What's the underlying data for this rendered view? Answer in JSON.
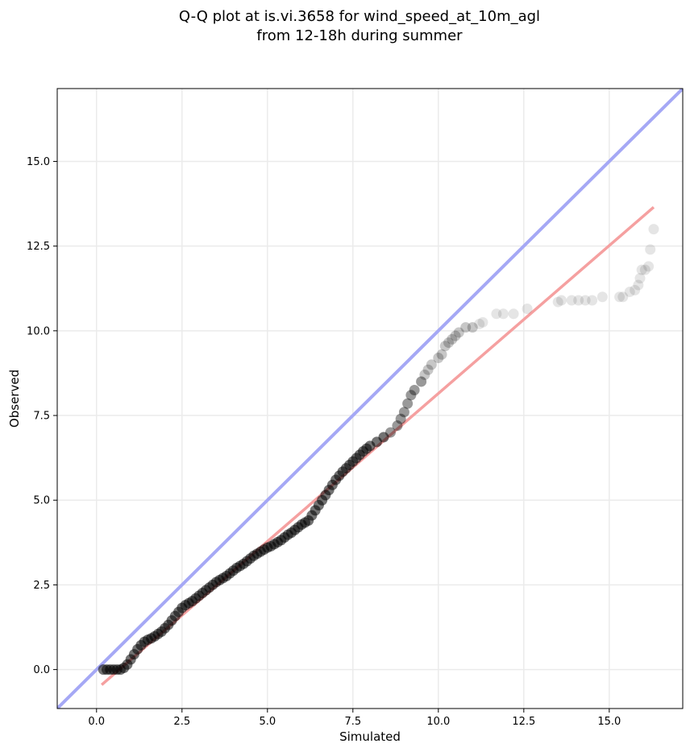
{
  "chart_data": {
    "type": "scatter",
    "title": [
      "Q-Q plot at is.vi.3658 for wind_speed_at_10m_agl",
      "from 12-18h during summer"
    ],
    "xlabel": "Simulated",
    "ylabel": "Observed",
    "xlim": [
      -1.15,
      17.15
    ],
    "ylim": [
      -1.15,
      17.15
    ],
    "xticks": [
      0.0,
      2.5,
      5.0,
      7.5,
      10.0,
      12.5,
      15.0
    ],
    "xtick_labels": [
      "0.0",
      "2.5",
      "5.0",
      "7.5",
      "10.0",
      "12.5",
      "15.0"
    ],
    "yticks": [
      0.0,
      2.5,
      5.0,
      7.5,
      10.0,
      12.5,
      15.0
    ],
    "ytick_labels": [
      "0.0",
      "2.5",
      "5.0",
      "7.5",
      "10.0",
      "12.5",
      "15.0"
    ],
    "grid": true,
    "reference_line": {
      "from": [
        -1.15,
        -1.15
      ],
      "to": [
        17.15,
        17.15
      ],
      "color": "#a5a8f5"
    },
    "fit_line": {
      "from": [
        0.15,
        -0.45
      ],
      "to": [
        16.3,
        13.65
      ],
      "color": "#f5a0a0"
    },
    "point_color": "#000000",
    "points": [
      [
        0.2,
        0.0
      ],
      [
        0.3,
        0.0
      ],
      [
        0.4,
        0.0
      ],
      [
        0.5,
        0.0
      ],
      [
        0.6,
        0.0
      ],
      [
        0.7,
        0.0
      ],
      [
        0.8,
        0.05
      ],
      [
        0.9,
        0.15
      ],
      [
        1.0,
        0.3
      ],
      [
        1.1,
        0.45
      ],
      [
        1.2,
        0.6
      ],
      [
        1.3,
        0.72
      ],
      [
        1.4,
        0.82
      ],
      [
        1.5,
        0.88
      ],
      [
        1.6,
        0.92
      ],
      [
        1.7,
        0.98
      ],
      [
        1.8,
        1.05
      ],
      [
        1.9,
        1.12
      ],
      [
        2.0,
        1.22
      ],
      [
        2.1,
        1.32
      ],
      [
        2.2,
        1.45
      ],
      [
        2.3,
        1.58
      ],
      [
        2.4,
        1.7
      ],
      [
        2.5,
        1.82
      ],
      [
        2.6,
        1.9
      ],
      [
        2.7,
        1.96
      ],
      [
        2.8,
        2.02
      ],
      [
        2.9,
        2.1
      ],
      [
        3.0,
        2.18
      ],
      [
        3.1,
        2.26
      ],
      [
        3.2,
        2.34
      ],
      [
        3.3,
        2.42
      ],
      [
        3.4,
        2.5
      ],
      [
        3.5,
        2.58
      ],
      [
        3.6,
        2.64
      ],
      [
        3.7,
        2.7
      ],
      [
        3.8,
        2.76
      ],
      [
        3.9,
        2.84
      ],
      [
        4.0,
        2.92
      ],
      [
        4.1,
        3.0
      ],
      [
        4.2,
        3.06
      ],
      [
        4.3,
        3.12
      ],
      [
        4.4,
        3.2
      ],
      [
        4.5,
        3.28
      ],
      [
        4.6,
        3.36
      ],
      [
        4.7,
        3.42
      ],
      [
        4.8,
        3.48
      ],
      [
        4.9,
        3.54
      ],
      [
        5.0,
        3.6
      ],
      [
        5.1,
        3.64
      ],
      [
        5.2,
        3.7
      ],
      [
        5.3,
        3.76
      ],
      [
        5.4,
        3.82
      ],
      [
        5.5,
        3.9
      ],
      [
        5.6,
        3.98
      ],
      [
        5.7,
        4.04
      ],
      [
        5.8,
        4.12
      ],
      [
        5.9,
        4.2
      ],
      [
        6.0,
        4.28
      ],
      [
        6.1,
        4.34
      ],
      [
        6.2,
        4.4
      ],
      [
        6.3,
        4.55
      ],
      [
        6.4,
        4.7
      ],
      [
        6.5,
        4.85
      ],
      [
        6.6,
        5.0
      ],
      [
        6.7,
        5.15
      ],
      [
        6.8,
        5.3
      ],
      [
        6.9,
        5.45
      ],
      [
        7.0,
        5.6
      ],
      [
        7.1,
        5.72
      ],
      [
        7.2,
        5.84
      ],
      [
        7.3,
        5.94
      ],
      [
        7.4,
        6.04
      ],
      [
        7.5,
        6.14
      ],
      [
        7.6,
        6.24
      ],
      [
        7.7,
        6.34
      ],
      [
        7.8,
        6.44
      ],
      [
        7.9,
        6.52
      ],
      [
        8.0,
        6.6
      ],
      [
        8.2,
        6.72
      ],
      [
        8.4,
        6.86
      ],
      [
        8.6,
        7.0
      ],
      [
        8.8,
        7.2
      ],
      [
        8.9,
        7.4
      ],
      [
        9.0,
        7.6
      ],
      [
        9.1,
        7.85
      ],
      [
        9.2,
        8.1
      ],
      [
        9.3,
        8.25
      ],
      [
        9.5,
        8.5
      ],
      [
        9.6,
        8.7
      ],
      [
        9.7,
        8.85
      ],
      [
        9.8,
        9.0
      ],
      [
        10.0,
        9.2
      ],
      [
        10.1,
        9.3
      ],
      [
        10.2,
        9.55
      ],
      [
        10.3,
        9.65
      ],
      [
        10.4,
        9.75
      ],
      [
        10.5,
        9.85
      ],
      [
        10.6,
        9.95
      ],
      [
        10.8,
        10.1
      ],
      [
        11.0,
        10.1
      ],
      [
        11.2,
        10.2
      ],
      [
        11.3,
        10.25
      ],
      [
        11.7,
        10.5
      ],
      [
        11.9,
        10.5
      ],
      [
        12.2,
        10.5
      ],
      [
        12.6,
        10.65
      ],
      [
        13.5,
        10.85
      ],
      [
        13.6,
        10.9
      ],
      [
        13.9,
        10.9
      ],
      [
        14.1,
        10.9
      ],
      [
        14.3,
        10.9
      ],
      [
        14.5,
        10.9
      ],
      [
        14.8,
        11.0
      ],
      [
        15.3,
        11.0
      ],
      [
        15.4,
        11.0
      ],
      [
        15.6,
        11.15
      ],
      [
        15.75,
        11.2
      ],
      [
        15.85,
        11.35
      ],
      [
        15.9,
        11.55
      ],
      [
        15.95,
        11.8
      ],
      [
        16.05,
        11.8
      ],
      [
        16.15,
        11.9
      ],
      [
        16.2,
        12.4
      ],
      [
        16.3,
        13.0
      ]
    ]
  }
}
